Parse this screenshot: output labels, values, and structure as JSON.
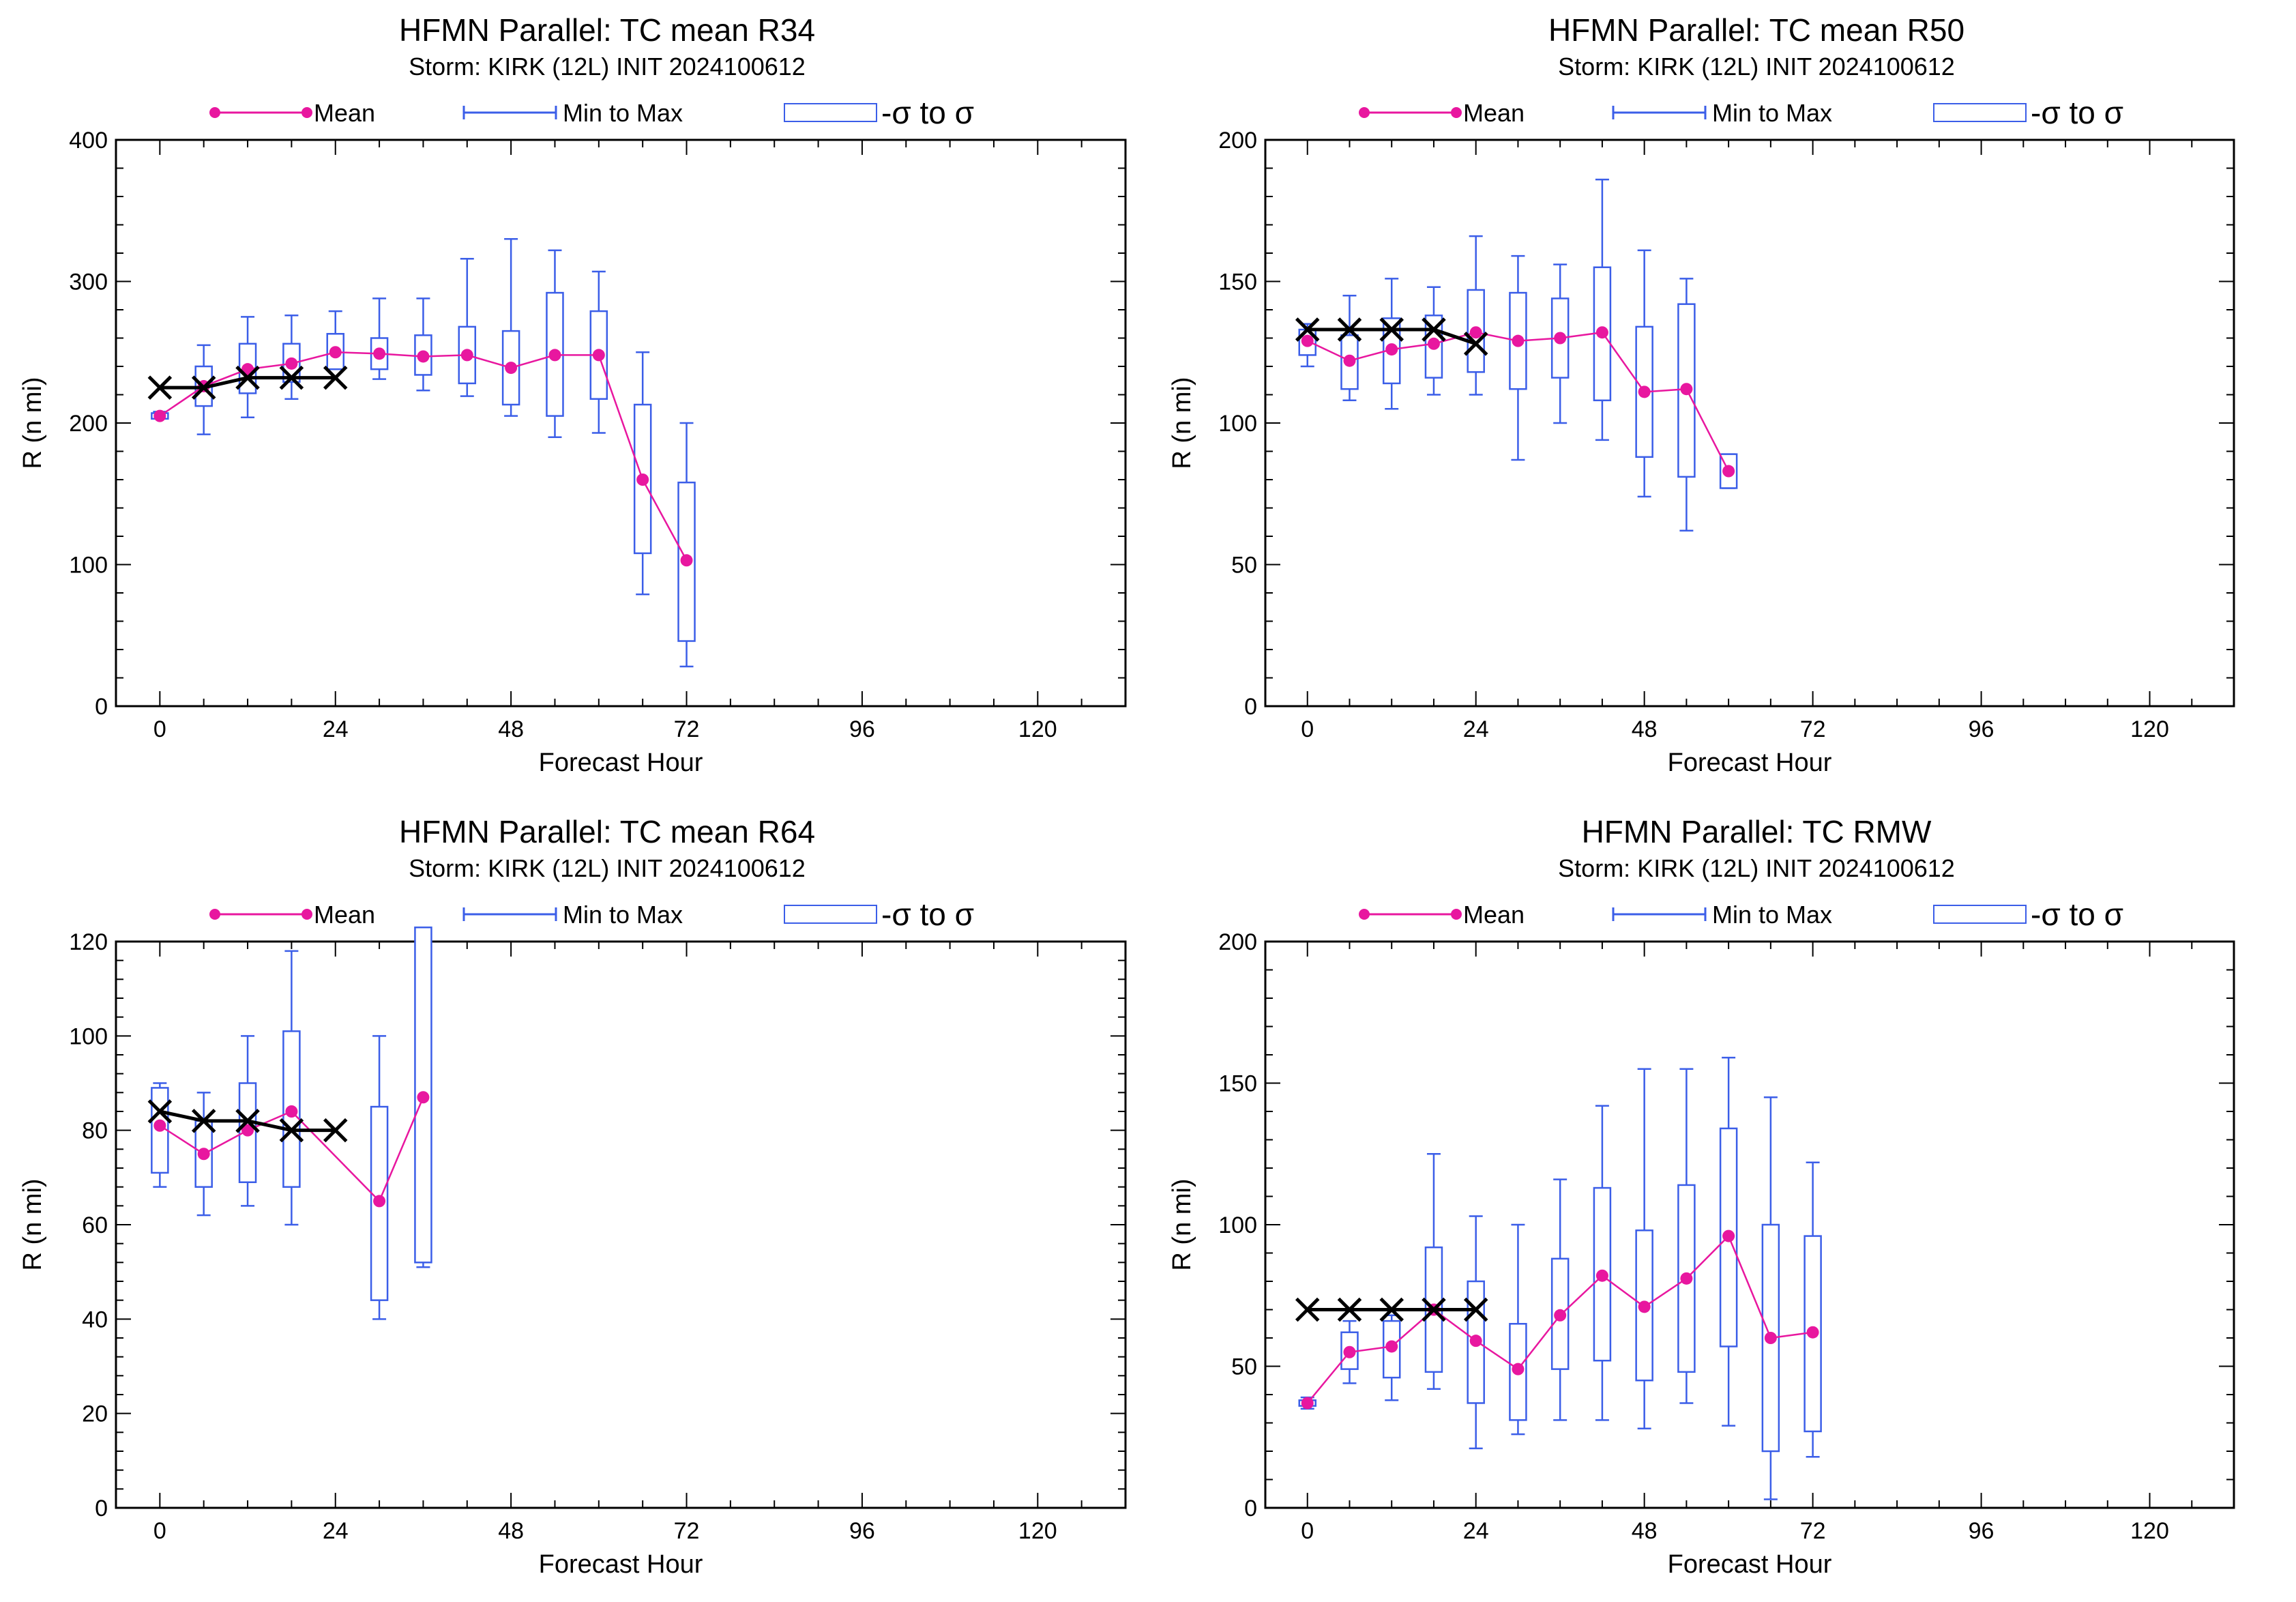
{
  "colors": {
    "mean": "#e8179f",
    "range": "#3b5ee8",
    "observed": "#000000",
    "axis": "#000000"
  },
  "legend": {
    "mean": "Mean",
    "range": "Min to Max",
    "sigma": "-σ to σ"
  },
  "chart_data": [
    {
      "type": "box",
      "title": "HFMN Parallel: TC mean R34",
      "subtitle": "Storm: KIRK (12L) INIT 2024100612",
      "xlabel": "Forecast Hour",
      "ylabel": "R (n mi)",
      "xlim": [
        -6,
        132
      ],
      "xticks": [
        0,
        24,
        48,
        72,
        96,
        120
      ],
      "ylim": [
        0,
        400
      ],
      "yticks": [
        0,
        100,
        200,
        300,
        400
      ],
      "observed": {
        "x": [
          0,
          6,
          12,
          18,
          24
        ],
        "y": [
          225,
          225,
          232,
          232,
          232
        ]
      },
      "stats": [
        {
          "x": 0,
          "mean": 205,
          "min": 203,
          "max": 208,
          "sd_low": 203,
          "sd_high": 207
        },
        {
          "x": 6,
          "mean": 226,
          "min": 192,
          "max": 255,
          "sd_low": 212,
          "sd_high": 240
        },
        {
          "x": 12,
          "mean": 238,
          "min": 204,
          "max": 275,
          "sd_low": 221,
          "sd_high": 256
        },
        {
          "x": 18,
          "mean": 242,
          "min": 217,
          "max": 276,
          "sd_low": 229,
          "sd_high": 256
        },
        {
          "x": 24,
          "mean": 250,
          "min": 239,
          "max": 279,
          "sd_low": 238,
          "sd_high": 263
        },
        {
          "x": 30,
          "mean": 249,
          "min": 231,
          "max": 288,
          "sd_low": 238,
          "sd_high": 260
        },
        {
          "x": 36,
          "mean": 247,
          "min": 223,
          "max": 288,
          "sd_low": 234,
          "sd_high": 262
        },
        {
          "x": 42,
          "mean": 248,
          "min": 219,
          "max": 316,
          "sd_low": 228,
          "sd_high": 268
        },
        {
          "x": 48,
          "mean": 239,
          "min": 205,
          "max": 330,
          "sd_low": 213,
          "sd_high": 265
        },
        {
          "x": 54,
          "mean": 248,
          "min": 190,
          "max": 322,
          "sd_low": 205,
          "sd_high": 292
        },
        {
          "x": 60,
          "mean": 248,
          "min": 193,
          "max": 307,
          "sd_low": 217,
          "sd_high": 279
        },
        {
          "x": 66,
          "mean": 160,
          "min": 79,
          "max": 250,
          "sd_low": 108,
          "sd_high": 213
        },
        {
          "x": 72,
          "mean": 103,
          "min": 28,
          "max": 200,
          "sd_low": 46,
          "sd_high": 158
        }
      ]
    },
    {
      "type": "box",
      "title": "HFMN Parallel: TC mean R50",
      "subtitle": "Storm: KIRK (12L) INIT 2024100612",
      "xlabel": "Forecast Hour",
      "ylabel": "R (n mi)",
      "xlim": [
        -6,
        132
      ],
      "xticks": [
        0,
        24,
        48,
        72,
        96,
        120
      ],
      "ylim": [
        0,
        200
      ],
      "yticks": [
        0,
        50,
        100,
        150,
        200
      ],
      "observed": {
        "x": [
          0,
          6,
          12,
          18,
          24
        ],
        "y": [
          133,
          133,
          133,
          133,
          128
        ]
      },
      "stats": [
        {
          "x": 0,
          "mean": 129,
          "min": 120,
          "max": 135,
          "sd_low": 124,
          "sd_high": 133
        },
        {
          "x": 6,
          "mean": 122,
          "min": 108,
          "max": 145,
          "sd_low": 112,
          "sd_high": 131
        },
        {
          "x": 12,
          "mean": 126,
          "min": 105,
          "max": 151,
          "sd_low": 114,
          "sd_high": 137
        },
        {
          "x": 18,
          "mean": 128,
          "min": 110,
          "max": 148,
          "sd_low": 116,
          "sd_high": 138
        },
        {
          "x": 24,
          "mean": 132,
          "min": 110,
          "max": 166,
          "sd_low": 118,
          "sd_high": 147
        },
        {
          "x": 30,
          "mean": 129,
          "min": 87,
          "max": 159,
          "sd_low": 112,
          "sd_high": 146
        },
        {
          "x": 36,
          "mean": 130,
          "min": 100,
          "max": 156,
          "sd_low": 116,
          "sd_high": 144
        },
        {
          "x": 42,
          "mean": 132,
          "min": 94,
          "max": 186,
          "sd_low": 108,
          "sd_high": 155
        },
        {
          "x": 48,
          "mean": 111,
          "min": 74,
          "max": 161,
          "sd_low": 88,
          "sd_high": 134
        },
        {
          "x": 54,
          "mean": 112,
          "min": 62,
          "max": 151,
          "sd_low": 81,
          "sd_high": 142
        },
        {
          "x": 60,
          "mean": 83,
          "min": 77,
          "max": 89,
          "sd_low": 77,
          "sd_high": 89
        }
      ]
    },
    {
      "type": "box",
      "title": "HFMN Parallel: TC mean R64",
      "subtitle": "Storm: KIRK (12L) INIT 2024100612",
      "xlabel": "Forecast Hour",
      "ylabel": "R (n mi)",
      "xlim": [
        -6,
        132
      ],
      "xticks": [
        0,
        24,
        48,
        72,
        96,
        120
      ],
      "ylim": [
        0,
        120
      ],
      "yticks": [
        0,
        20,
        40,
        60,
        80,
        100,
        120
      ],
      "observed": {
        "x": [
          0,
          6,
          12,
          18,
          24
        ],
        "y": [
          84,
          82,
          82,
          80,
          80
        ]
      },
      "stats": [
        {
          "x": 0,
          "mean": 81,
          "min": 68,
          "max": 90,
          "sd_low": 71,
          "sd_high": 89
        },
        {
          "x": 6,
          "mean": 75,
          "min": 62,
          "max": 88,
          "sd_low": 68,
          "sd_high": 82
        },
        {
          "x": 12,
          "mean": 80,
          "min": 64,
          "max": 100,
          "sd_low": 69,
          "sd_high": 90
        },
        {
          "x": 18,
          "mean": 84,
          "min": 60,
          "max": 118,
          "sd_low": 68,
          "sd_high": 101
        },
        {
          "x": 30,
          "mean": 65,
          "min": 40,
          "max": 100,
          "sd_low": 44,
          "sd_high": 85
        },
        {
          "x": 36,
          "mean": 87,
          "min": 51,
          "max": 123,
          "sd_low": 52,
          "sd_high": 123
        }
      ]
    },
    {
      "type": "box",
      "title": "HFMN Parallel: TC RMW",
      "subtitle": "Storm: KIRK (12L) INIT 2024100612",
      "xlabel": "Forecast Hour",
      "ylabel": "R (n mi)",
      "xlim": [
        -6,
        132
      ],
      "xticks": [
        0,
        24,
        48,
        72,
        96,
        120
      ],
      "ylim": [
        0,
        200
      ],
      "yticks": [
        0,
        50,
        100,
        150,
        200
      ],
      "observed": {
        "x": [
          0,
          6,
          12,
          18,
          24
        ],
        "y": [
          70,
          70,
          70,
          70,
          70
        ]
      },
      "stats": [
        {
          "x": 0,
          "mean": 37,
          "min": 35,
          "max": 39,
          "sd_low": 36,
          "sd_high": 38
        },
        {
          "x": 6,
          "mean": 55,
          "min": 44,
          "max": 66,
          "sd_low": 49,
          "sd_high": 62
        },
        {
          "x": 12,
          "mean": 57,
          "min": 38,
          "max": 68,
          "sd_low": 46,
          "sd_high": 66
        },
        {
          "x": 18,
          "mean": 70,
          "min": 42,
          "max": 125,
          "sd_low": 48,
          "sd_high": 92
        },
        {
          "x": 24,
          "mean": 59,
          "min": 21,
          "max": 103,
          "sd_low": 37,
          "sd_high": 80
        },
        {
          "x": 30,
          "mean": 49,
          "min": 26,
          "max": 100,
          "sd_low": 31,
          "sd_high": 65
        },
        {
          "x": 36,
          "mean": 68,
          "min": 31,
          "max": 116,
          "sd_low": 49,
          "sd_high": 88
        },
        {
          "x": 42,
          "mean": 82,
          "min": 31,
          "max": 142,
          "sd_low": 52,
          "sd_high": 113
        },
        {
          "x": 48,
          "mean": 71,
          "min": 28,
          "max": 155,
          "sd_low": 45,
          "sd_high": 98
        },
        {
          "x": 54,
          "mean": 81,
          "min": 37,
          "max": 155,
          "sd_low": 48,
          "sd_high": 114
        },
        {
          "x": 60,
          "mean": 96,
          "min": 29,
          "max": 159,
          "sd_low": 57,
          "sd_high": 134
        },
        {
          "x": 66,
          "mean": 60,
          "min": 3,
          "max": 145,
          "sd_low": 20,
          "sd_high": 100
        },
        {
          "x": 72,
          "mean": 62,
          "min": 18,
          "max": 122,
          "sd_low": 27,
          "sd_high": 96
        }
      ]
    }
  ]
}
